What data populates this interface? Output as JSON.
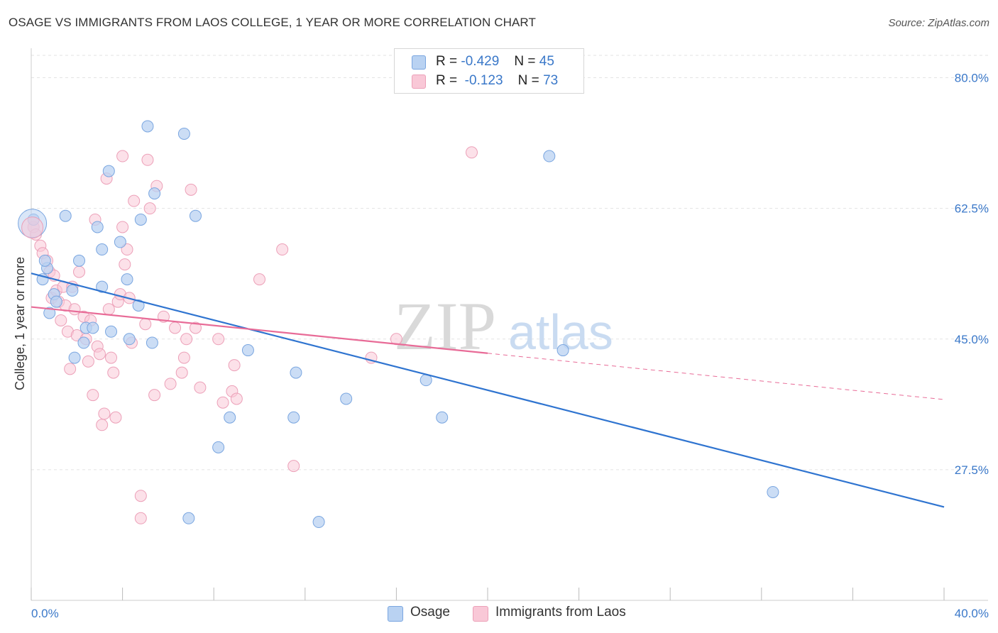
{
  "header": {
    "title": "OSAGE VS IMMIGRANTS FROM LAOS COLLEGE, 1 YEAR OR MORE CORRELATION CHART",
    "source": "Source: ZipAtlas.com"
  },
  "legend_top": {
    "rows": [
      {
        "r_label": "R =",
        "r_value": "-0.429",
        "n_label": "N =",
        "n_value": "45"
      },
      {
        "r_label": "R =",
        "r_value": "-0.123",
        "n_label": "N =",
        "n_value": "73"
      }
    ]
  },
  "legend_bottom": {
    "items": [
      "Osage",
      "Immigrants from Laos"
    ]
  },
  "watermark": {
    "zip": "ZIP",
    "atlas": "atlas"
  },
  "colors": {
    "osage_fill": "#b9d2f2",
    "osage_stroke": "#7aa6e0",
    "osage_line": "#2f74d0",
    "laos_fill": "#f9c8d7",
    "laos_stroke": "#eca0b8",
    "laos_line": "#e86b97",
    "axis_label": "#3a78c9",
    "grid": "#e3e3e3"
  },
  "chart_data": {
    "type": "scatter",
    "title": "OSAGE VS IMMIGRANTS FROM LAOS COLLEGE, 1 YEAR OR MORE CORRELATION CHART",
    "xlabel": "",
    "ylabel": "College, 1 year or more",
    "xlim": [
      0,
      40
    ],
    "ylim": [
      10,
      83
    ],
    "x_tick_labels": [
      "0.0%",
      "40.0%"
    ],
    "y_ticks": [
      27.5,
      45.0,
      62.5,
      80.0
    ],
    "y_tick_labels": [
      "27.5%",
      "45.0%",
      "62.5%",
      "80.0%"
    ],
    "grid": true,
    "legend_placement": "top-center",
    "series": [
      {
        "name": "Osage",
        "points": [
          [
            0.1,
            61.0
          ],
          [
            0.5,
            53.0
          ],
          [
            0.7,
            54.5
          ],
          [
            0.8,
            48.5
          ],
          [
            0.6,
            55.5
          ],
          [
            1.0,
            51.0
          ],
          [
            1.1,
            50.0
          ],
          [
            1.5,
            61.5
          ],
          [
            1.8,
            51.5
          ],
          [
            1.9,
            42.5
          ],
          [
            2.1,
            55.5
          ],
          [
            2.3,
            44.5
          ],
          [
            2.4,
            46.5
          ],
          [
            2.7,
            46.5
          ],
          [
            2.9,
            60.0
          ],
          [
            3.1,
            52.0
          ],
          [
            3.1,
            57.0
          ],
          [
            3.4,
            67.5
          ],
          [
            3.5,
            46.0
          ],
          [
            3.9,
            58.0
          ],
          [
            4.2,
            53.0
          ],
          [
            4.3,
            45.0
          ],
          [
            4.7,
            49.5
          ],
          [
            4.8,
            61.0
          ],
          [
            5.1,
            73.5
          ],
          [
            5.3,
            44.5
          ],
          [
            5.4,
            64.5
          ],
          [
            6.7,
            72.5
          ],
          [
            6.9,
            21.0
          ],
          [
            7.2,
            61.5
          ],
          [
            8.2,
            30.5
          ],
          [
            8.7,
            34.5
          ],
          [
            9.5,
            43.5
          ],
          [
            11.5,
            34.5
          ],
          [
            11.6,
            40.5
          ],
          [
            12.6,
            20.5
          ],
          [
            13.8,
            37.0
          ],
          [
            17.3,
            39.5
          ],
          [
            18.0,
            34.5
          ],
          [
            22.7,
            69.5
          ],
          [
            23.3,
            43.5
          ],
          [
            32.5,
            24.5
          ]
        ]
      },
      {
        "name": "Immigrants from Laos",
        "points": [
          [
            0.1,
            60.0
          ],
          [
            0.2,
            59.0
          ],
          [
            0.4,
            57.5
          ],
          [
            0.5,
            56.5
          ],
          [
            0.7,
            55.5
          ],
          [
            0.8,
            54.0
          ],
          [
            0.9,
            50.5
          ],
          [
            1.0,
            53.5
          ],
          [
            1.1,
            51.5
          ],
          [
            1.2,
            50.0
          ],
          [
            1.3,
            47.5
          ],
          [
            1.4,
            52.0
          ],
          [
            1.5,
            49.5
          ],
          [
            1.6,
            46.0
          ],
          [
            1.7,
            41.0
          ],
          [
            1.8,
            52.0
          ],
          [
            1.9,
            49.0
          ],
          [
            2.0,
            45.5
          ],
          [
            2.1,
            54.0
          ],
          [
            2.3,
            48.0
          ],
          [
            2.4,
            45.0
          ],
          [
            2.5,
            42.0
          ],
          [
            2.6,
            47.5
          ],
          [
            2.7,
            37.5
          ],
          [
            2.8,
            61.0
          ],
          [
            2.9,
            44.0
          ],
          [
            3.0,
            43.0
          ],
          [
            3.1,
            33.5
          ],
          [
            3.2,
            35.0
          ],
          [
            3.3,
            66.5
          ],
          [
            3.4,
            49.0
          ],
          [
            3.5,
            42.5
          ],
          [
            3.6,
            40.5
          ],
          [
            3.7,
            34.5
          ],
          [
            3.8,
            50.0
          ],
          [
            3.9,
            51.0
          ],
          [
            4.0,
            60.0
          ],
          [
            4.0,
            69.5
          ],
          [
            4.1,
            55.0
          ],
          [
            4.2,
            57.0
          ],
          [
            4.3,
            50.5
          ],
          [
            4.4,
            44.5
          ],
          [
            4.5,
            63.5
          ],
          [
            4.8,
            24.0
          ],
          [
            4.8,
            21.0
          ],
          [
            5.0,
            47.0
          ],
          [
            5.1,
            69.0
          ],
          [
            5.2,
            62.5
          ],
          [
            5.4,
            37.5
          ],
          [
            5.5,
            65.5
          ],
          [
            5.8,
            48.0
          ],
          [
            6.1,
            39.0
          ],
          [
            6.3,
            46.5
          ],
          [
            6.6,
            40.5
          ],
          [
            6.7,
            42.5
          ],
          [
            6.8,
            45.0
          ],
          [
            7.0,
            65.0
          ],
          [
            7.2,
            46.5
          ],
          [
            7.4,
            38.5
          ],
          [
            8.2,
            45.0
          ],
          [
            8.4,
            36.5
          ],
          [
            8.8,
            38.0
          ],
          [
            8.9,
            41.5
          ],
          [
            9.0,
            37.0
          ],
          [
            10.0,
            53.0
          ],
          [
            11.0,
            57.0
          ],
          [
            11.5,
            28.0
          ],
          [
            14.9,
            42.5
          ],
          [
            16.0,
            45.0
          ],
          [
            19.3,
            70.0
          ]
        ]
      }
    ],
    "trend_lines": [
      {
        "series": "Osage",
        "x": [
          0,
          40
        ],
        "y": [
          53.8,
          22.5
        ],
        "style": "solid"
      },
      {
        "series": "Immigrants from Laos",
        "x": [
          0,
          20
        ],
        "y": [
          49.3,
          43.1
        ],
        "style": "solid"
      },
      {
        "series": "Immigrants from Laos",
        "x": [
          20,
          40
        ],
        "y": [
          43.1,
          36.9
        ],
        "style": "dashed"
      }
    ],
    "large_point": {
      "series": "Osage",
      "x": 0.05,
      "y": 60.5
    }
  }
}
